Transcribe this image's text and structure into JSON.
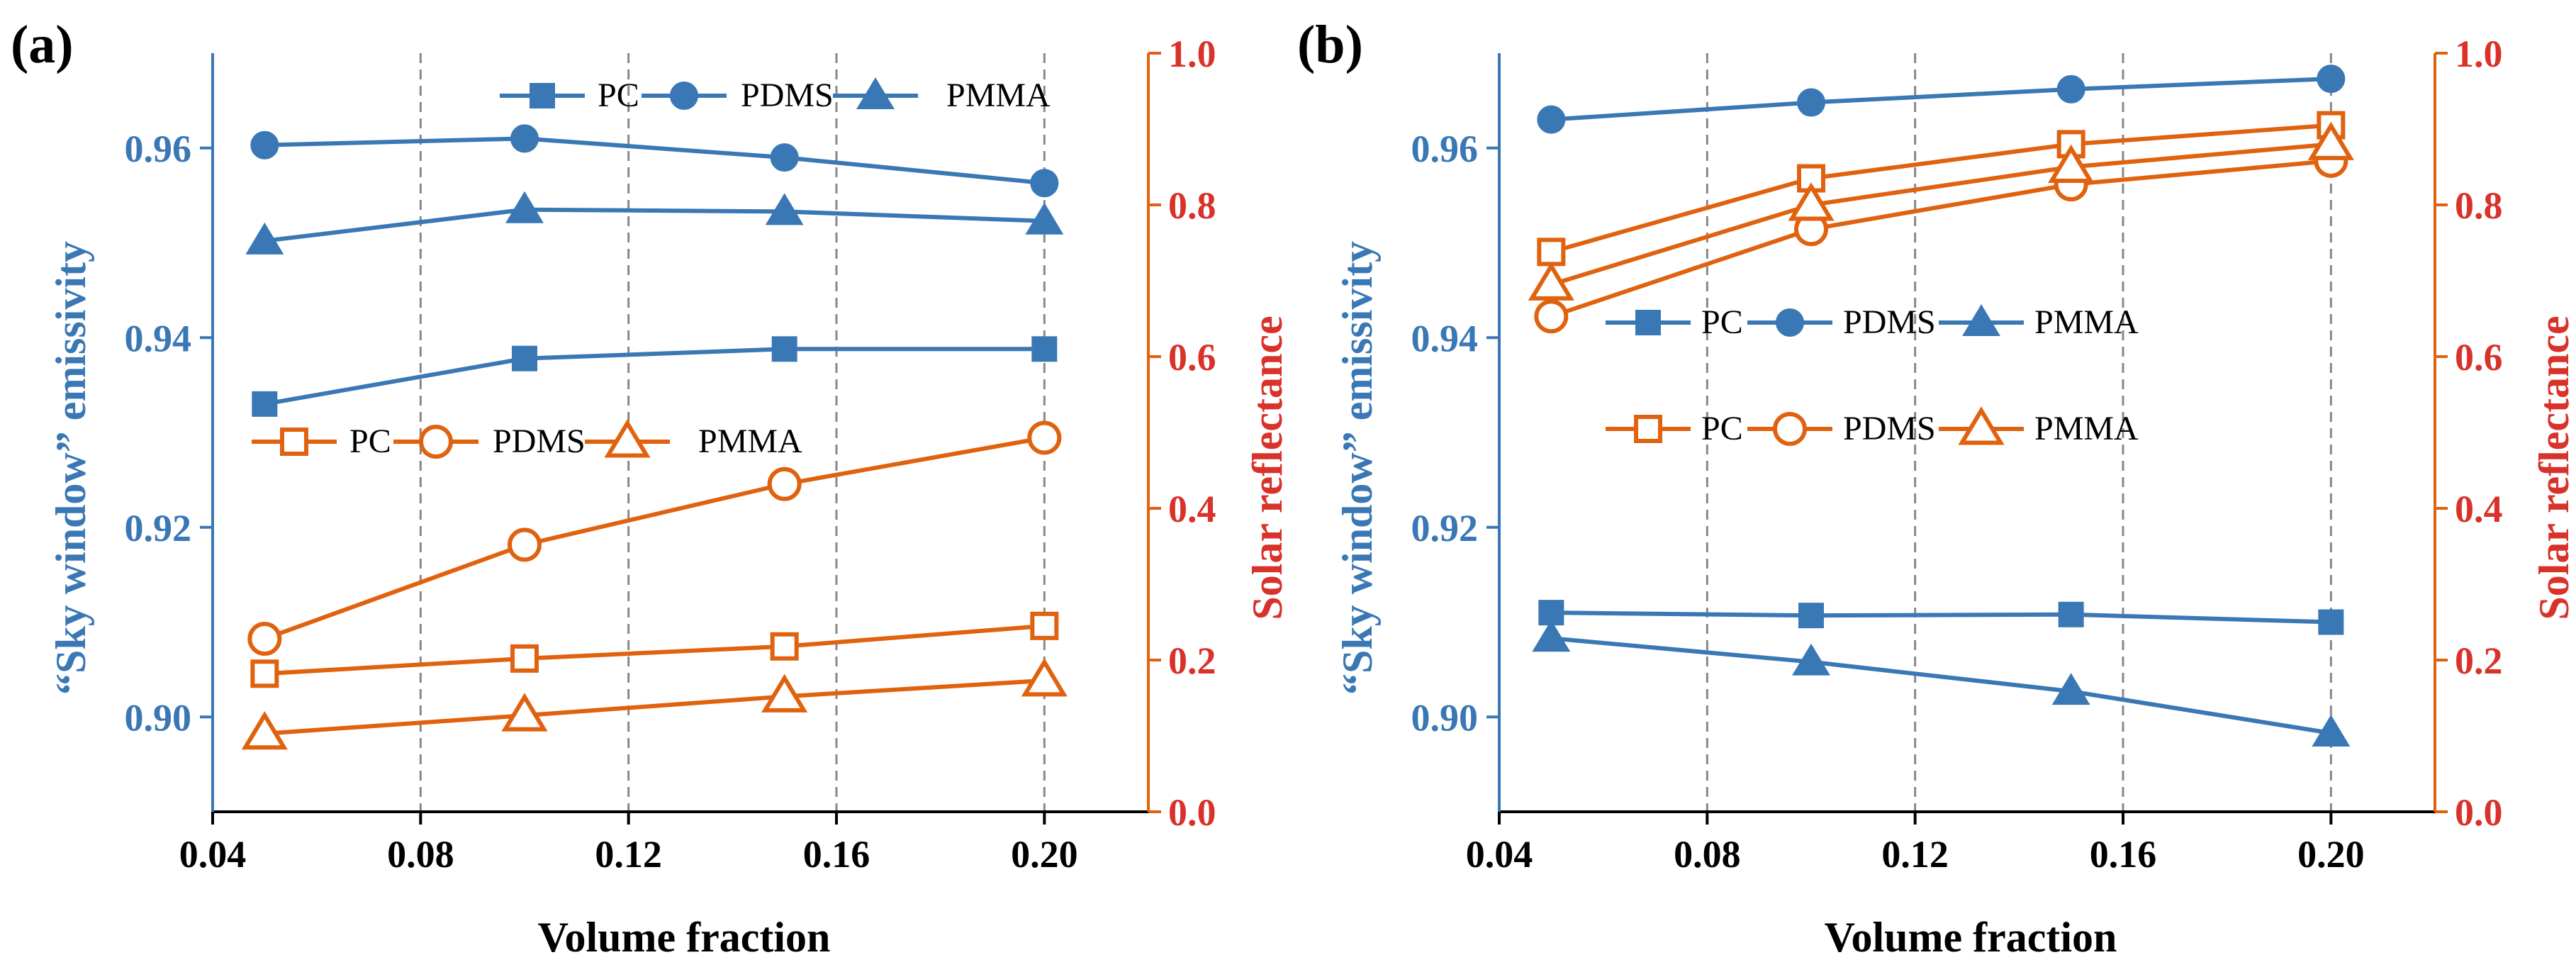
{
  "colors": {
    "blue": "#3a78b5",
    "orange": "#e0620e",
    "red": "#d8322a",
    "grid": "#888888",
    "black": "#000000"
  },
  "chart_data": [
    {
      "panel_label": "(a)",
      "type": "line",
      "xlabel": "Volume fraction",
      "ylabel": "“Sky window” emissivity",
      "ylabel_right": "Solar reflectance",
      "xlim": [
        0.04,
        0.22
      ],
      "ylim": [
        0.89,
        0.97
      ],
      "ylim_right": [
        0.0,
        1.0
      ],
      "xticks": [
        "0.04",
        "0.08",
        "0.12",
        "0.16",
        "0.20"
      ],
      "yticks": [
        "0.90",
        "0.92",
        "0.94",
        "0.96"
      ],
      "yticks_right": [
        "0.0",
        "0.2",
        "0.4",
        "0.6",
        "0.8",
        "1.0"
      ],
      "grid": "vertical dashed at 0.08, 0.12, 0.16, 0.20",
      "x": [
        0.05,
        0.1,
        0.15,
        0.2
      ],
      "series": [
        {
          "name": "PC",
          "axis": "left",
          "marker": "square",
          "filled": true,
          "values": [
            0.933,
            0.9378,
            0.9388,
            0.9388
          ]
        },
        {
          "name": "PDMS",
          "axis": "left",
          "marker": "circle",
          "filled": true,
          "values": [
            0.9603,
            0.961,
            0.959,
            0.9563
          ]
        },
        {
          "name": "PMMA",
          "axis": "left",
          "marker": "triangle",
          "filled": true,
          "values": [
            0.9502,
            0.9535,
            0.9533,
            0.9523
          ]
        },
        {
          "name": "PC",
          "axis": "right",
          "marker": "square",
          "filled": false,
          "values": [
            0.182,
            0.202,
            0.218,
            0.245
          ]
        },
        {
          "name": "PDMS",
          "axis": "right",
          "marker": "circle",
          "filled": false,
          "values": [
            0.228,
            0.352,
            0.432,
            0.493
          ]
        },
        {
          "name": "PMMA",
          "axis": "right",
          "marker": "triangle",
          "filled": false,
          "values": [
            0.103,
            0.127,
            0.152,
            0.173
          ]
        }
      ],
      "legend_left": [
        "PC",
        "PDMS",
        "PMMA"
      ],
      "legend_right": [
        "PC",
        "PDMS",
        "PMMA"
      ]
    },
    {
      "panel_label": "(b)",
      "type": "line",
      "xlabel": "Volume fraction",
      "ylabel": "“Sky window” emissivity",
      "ylabel_right": "Solar reflectance",
      "xlim": [
        0.04,
        0.22
      ],
      "ylim": [
        0.89,
        0.97
      ],
      "ylim_right": [
        0.0,
        1.0
      ],
      "xticks": [
        "0.04",
        "0.08",
        "0.12",
        "0.16",
        "0.20"
      ],
      "yticks": [
        "0.90",
        "0.92",
        "0.94",
        "0.96"
      ],
      "yticks_right": [
        "0.0",
        "0.2",
        "0.4",
        "0.6",
        "0.8",
        "1.0"
      ],
      "grid": "vertical dashed at 0.08, 0.12, 0.16, 0.20",
      "x": [
        0.05,
        0.1,
        0.15,
        0.2
      ],
      "series": [
        {
          "name": "PC",
          "axis": "left",
          "marker": "square",
          "filled": true,
          "values": [
            0.911,
            0.9107,
            0.9108,
            0.91
          ]
        },
        {
          "name": "PDMS",
          "axis": "left",
          "marker": "circle",
          "filled": true,
          "values": [
            0.963,
            0.9648,
            0.9662,
            0.9673
          ]
        },
        {
          "name": "PMMA",
          "axis": "left",
          "marker": "triangle",
          "filled": true,
          "values": [
            0.9083,
            0.9058,
            0.9027,
            0.8983
          ]
        },
        {
          "name": "PC",
          "axis": "right",
          "marker": "square",
          "filled": false,
          "values": [
            0.738,
            0.835,
            0.88,
            0.905
          ]
        },
        {
          "name": "PDMS",
          "axis": "right",
          "marker": "circle",
          "filled": false,
          "values": [
            0.653,
            0.768,
            0.827,
            0.858
          ]
        },
        {
          "name": "PMMA",
          "axis": "right",
          "marker": "triangle",
          "filled": false,
          "values": [
            0.695,
            0.8,
            0.85,
            0.88
          ]
        }
      ],
      "legend_left": [
        "PC",
        "PDMS",
        "PMMA"
      ],
      "legend_right": [
        "PC",
        "PDMS",
        "PMMA"
      ]
    }
  ]
}
